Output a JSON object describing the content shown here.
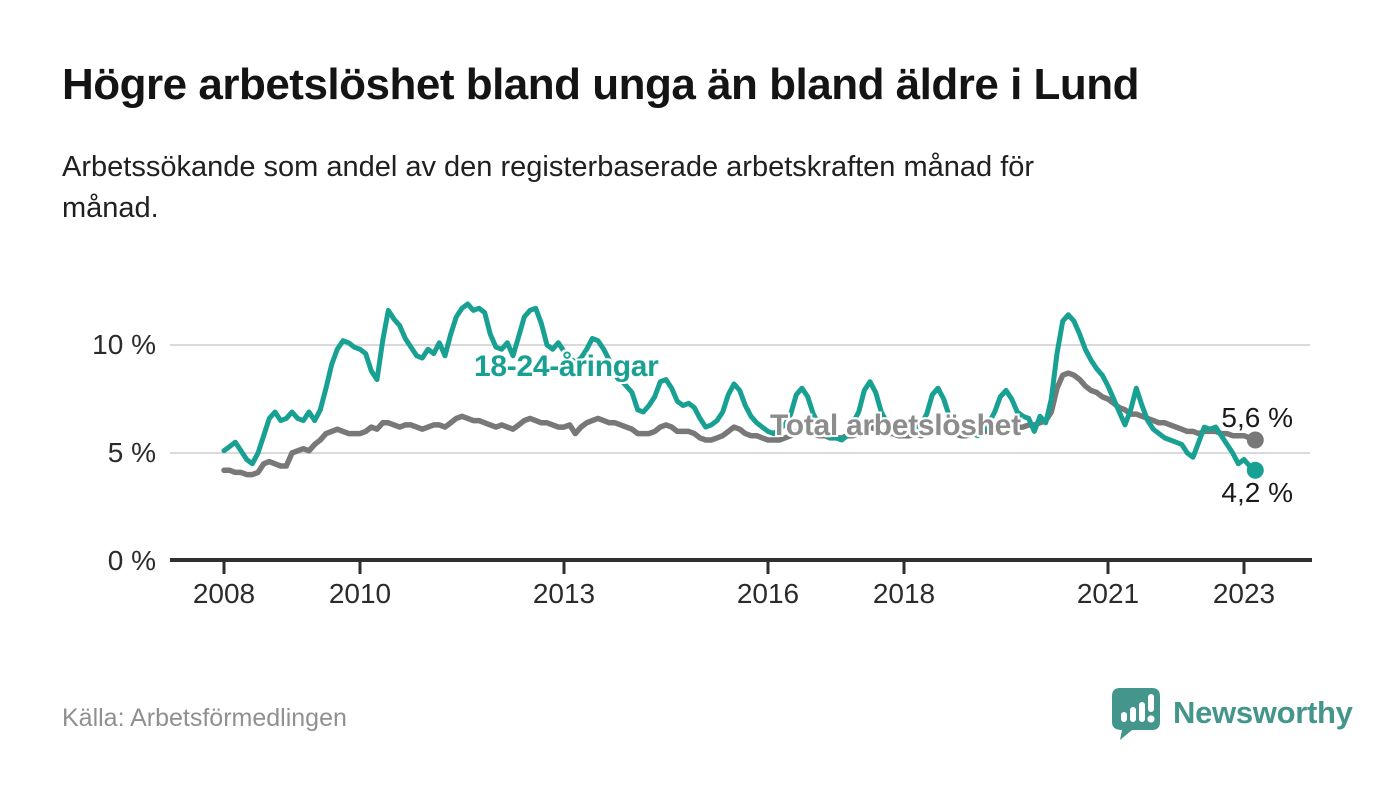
{
  "header": {
    "title": "Högre arbetslöshet bland unga än bland äldre i Lund",
    "subtitle": "Arbetssökande som andel av den registerbaserade arbetskraften månad för månad.",
    "subtitle_line1": "Arbetssökande som andel av den registerbaserade arbetskraften månad för",
    "subtitle_line2": "månad."
  },
  "footer": {
    "source": "Källa: Arbetsförmedlingen",
    "brand": "Newsworthy",
    "brand_color": "#44958c"
  },
  "chart_data": {
    "type": "line",
    "unit": "%",
    "x_start": "2008-01",
    "x_end": "2023-03",
    "x_interval": "month",
    "ylim": [
      0,
      12.5
    ],
    "grid": "horizontal",
    "axis_color": "#2f2f2f",
    "grid_color": "#dadada",
    "y_ticks": [
      {
        "value": 0,
        "label": "0 %"
      },
      {
        "value": 5,
        "label": "5 %"
      },
      {
        "value": 10,
        "label": "10 %"
      }
    ],
    "x_ticks": [
      {
        "year": 2008,
        "label": "2008"
      },
      {
        "year": 2010,
        "label": "2010"
      },
      {
        "year": 2013,
        "label": "2013"
      },
      {
        "year": 2016,
        "label": "2016"
      },
      {
        "year": 2018,
        "label": "2018"
      },
      {
        "year": 2021,
        "label": "2021"
      },
      {
        "year": 2023,
        "label": "2023"
      }
    ],
    "series": [
      {
        "name": "Total arbetslöshet",
        "color": "#787878",
        "line_width": 5.5,
        "end_label": "5,6 %",
        "end_value": 5.6,
        "values": [
          4.2,
          4.2,
          4.1,
          4.1,
          4.0,
          4.0,
          4.1,
          4.5,
          4.6,
          4.5,
          4.4,
          4.4,
          5.0,
          5.1,
          5.2,
          5.1,
          5.4,
          5.6,
          5.9,
          6.0,
          6.1,
          6.0,
          5.9,
          5.9,
          5.9,
          6.0,
          6.2,
          6.1,
          6.4,
          6.4,
          6.3,
          6.2,
          6.3,
          6.3,
          6.2,
          6.1,
          6.2,
          6.3,
          6.3,
          6.2,
          6.4,
          6.6,
          6.7,
          6.6,
          6.5,
          6.5,
          6.4,
          6.3,
          6.2,
          6.3,
          6.2,
          6.1,
          6.3,
          6.5,
          6.6,
          6.5,
          6.4,
          6.4,
          6.3,
          6.2,
          6.2,
          6.3,
          5.9,
          6.2,
          6.4,
          6.5,
          6.6,
          6.5,
          6.4,
          6.4,
          6.3,
          6.2,
          6.1,
          5.9,
          5.9,
          5.9,
          6.0,
          6.2,
          6.3,
          6.2,
          6.0,
          6.0,
          6.0,
          5.9,
          5.7,
          5.6,
          5.6,
          5.7,
          5.8,
          6.0,
          6.2,
          6.1,
          5.9,
          5.8,
          5.8,
          5.7,
          5.6,
          5.6,
          5.6,
          5.7,
          5.8,
          6.0,
          6.1,
          6.0,
          5.9,
          5.8,
          5.8,
          5.7,
          5.7,
          5.7,
          5.8,
          5.8,
          5.9,
          6.1,
          6.2,
          6.1,
          6.0,
          5.9,
          5.9,
          5.8,
          5.8,
          5.8,
          5.9,
          5.8,
          5.9,
          6.1,
          6.2,
          6.1,
          5.9,
          5.9,
          5.8,
          5.8,
          5.9,
          5.9,
          6.0,
          6.0,
          6.1,
          6.3,
          6.4,
          6.3,
          6.2,
          6.2,
          6.3,
          6.3,
          6.4,
          6.5,
          6.9,
          8.0,
          8.6,
          8.7,
          8.6,
          8.4,
          8.1,
          7.9,
          7.8,
          7.6,
          7.5,
          7.3,
          7.1,
          7.0,
          6.8,
          6.8,
          6.7,
          6.6,
          6.5,
          6.4,
          6.4,
          6.3,
          6.2,
          6.1,
          6.0,
          6.0,
          5.9,
          6.0,
          6.0,
          6.0,
          5.9,
          5.9,
          5.8,
          5.8,
          5.8,
          5.7,
          5.6
        ]
      },
      {
        "name": "18-24-åringar",
        "color": "#18a193",
        "line_width": 5,
        "end_label": "4,2 %",
        "end_value": 4.2,
        "values": [
          5.1,
          5.3,
          5.5,
          5.1,
          4.7,
          4.5,
          5.0,
          5.8,
          6.6,
          6.9,
          6.5,
          6.6,
          6.9,
          6.6,
          6.5,
          6.9,
          6.5,
          7.0,
          8.0,
          9.1,
          9.8,
          10.2,
          10.1,
          9.9,
          9.8,
          9.6,
          8.8,
          8.4,
          10.2,
          11.6,
          11.2,
          10.9,
          10.3,
          9.9,
          9.5,
          9.4,
          9.8,
          9.6,
          10.1,
          9.5,
          10.5,
          11.3,
          11.7,
          11.9,
          11.6,
          11.7,
          11.5,
          10.5,
          9.9,
          9.8,
          10.1,
          9.5,
          10.4,
          11.3,
          11.6,
          11.7,
          11.0,
          10.0,
          9.8,
          10.1,
          9.7,
          9.4,
          9.2,
          9.4,
          9.8,
          10.3,
          10.2,
          9.8,
          9.3,
          8.8,
          8.4,
          8.1,
          7.8,
          7.0,
          6.9,
          7.2,
          7.6,
          8.3,
          8.4,
          8.0,
          7.4,
          7.2,
          7.3,
          7.1,
          6.6,
          6.2,
          6.3,
          6.5,
          6.9,
          7.7,
          8.2,
          7.9,
          7.2,
          6.7,
          6.4,
          6.2,
          6.0,
          5.9,
          6.1,
          6.3,
          6.8,
          7.7,
          8.0,
          7.6,
          6.8,
          6.3,
          6.0,
          5.7,
          5.7,
          5.6,
          5.8,
          6.4,
          6.9,
          7.9,
          8.3,
          7.8,
          6.9,
          6.4,
          6.1,
          5.9,
          5.9,
          6.0,
          6.1,
          6.3,
          6.8,
          7.7,
          8.0,
          7.5,
          6.7,
          6.3,
          6.1,
          6.0,
          5.9,
          5.8,
          6.0,
          6.4,
          6.9,
          7.6,
          7.9,
          7.5,
          6.9,
          6.7,
          6.6,
          6.0,
          6.7,
          6.4,
          7.5,
          9.6,
          11.1,
          11.4,
          11.1,
          10.5,
          9.8,
          9.3,
          8.9,
          8.6,
          8.1,
          7.5,
          6.9,
          6.3,
          7.0,
          8.0,
          7.2,
          6.5,
          6.1,
          5.9,
          5.7,
          5.6,
          5.5,
          5.4,
          5.0,
          4.8,
          5.5,
          6.2,
          6.1,
          6.2,
          5.8,
          5.4,
          5.0,
          4.5,
          4.7,
          4.4,
          4.2
        ]
      }
    ]
  }
}
